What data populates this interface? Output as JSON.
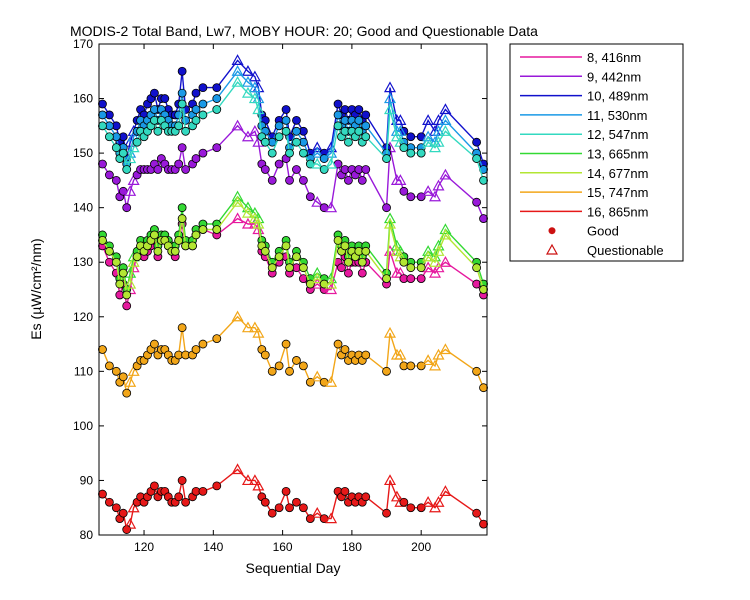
{
  "chart_data": {
    "type": "line",
    "title": "MODIS-2 Total Band,  Lw7, MOBY HOUR: 20;  Good and Questionable Data",
    "xlabel": "Sequential Day",
    "ylabel": "Es (µW/cm²/nm)",
    "xlim": [
      107,
      219
    ],
    "ylim": [
      80,
      170
    ],
    "xticks": [
      120,
      140,
      160,
      180,
      200
    ],
    "yticks": [
      80,
      90,
      100,
      110,
      120,
      130,
      140,
      150,
      160,
      170
    ],
    "legend_position": "outside-right-top",
    "markers": {
      "good_label": "Good",
      "questionable_label": "Questionable",
      "good_color": "#cc1111",
      "questionable_color": "#cc1111"
    },
    "x": [
      108,
      110,
      112,
      113,
      114,
      115,
      116,
      117,
      118,
      119,
      120,
      121,
      122,
      123,
      124,
      125,
      126,
      127,
      128,
      129,
      130,
      131,
      132,
      134,
      135,
      137,
      141,
      147,
      150,
      152,
      153,
      154,
      155,
      157,
      159,
      161,
      162,
      164,
      166,
      168,
      170,
      172,
      174,
      176,
      177,
      178,
      179,
      180,
      181,
      182,
      183,
      184,
      190,
      191,
      193,
      194,
      195,
      197,
      200,
      202,
      204,
      205,
      207,
      216,
      218
    ],
    "questionable": [
      false,
      false,
      false,
      false,
      false,
      false,
      true,
      true,
      false,
      false,
      false,
      false,
      false,
      false,
      false,
      false,
      false,
      false,
      false,
      false,
      false,
      false,
      false,
      false,
      false,
      false,
      false,
      true,
      true,
      true,
      true,
      false,
      false,
      false,
      false,
      false,
      false,
      false,
      false,
      false,
      true,
      false,
      true,
      false,
      false,
      false,
      false,
      false,
      false,
      false,
      false,
      false,
      false,
      true,
      true,
      true,
      false,
      false,
      false,
      true,
      true,
      true,
      true,
      false,
      false
    ],
    "series": [
      {
        "name": "8, 416nm",
        "color": "#e6199e",
        "values": [
          133,
          130,
          128,
          124,
          126,
          122,
          125,
          129,
          131,
          133,
          131,
          132,
          133,
          134,
          131,
          134,
          134,
          133,
          132,
          131,
          134,
          137,
          133,
          133,
          135,
          136,
          135,
          138,
          137,
          137,
          136,
          132,
          131,
          128,
          130,
          131,
          128,
          129,
          127,
          125,
          126,
          125,
          125,
          130,
          129,
          131,
          128,
          130,
          130,
          130,
          128,
          130,
          126,
          132,
          128,
          128,
          127,
          127,
          127,
          129,
          128,
          129,
          130,
          126,
          124
        ]
      },
      {
        "name": "9, 442nm",
        "color": "#9919d9",
        "values": [
          148,
          146,
          145,
          142,
          143,
          140,
          143,
          145,
          146,
          147,
          147,
          147,
          147,
          148,
          147,
          149,
          148,
          147,
          147,
          147,
          148,
          151,
          147,
          148,
          149,
          150,
          151,
          155,
          153,
          154,
          152,
          148,
          147,
          145,
          148,
          149,
          145,
          147,
          145,
          142,
          141,
          140,
          140,
          148,
          146,
          147,
          145,
          147,
          146,
          147,
          145,
          147,
          140,
          151,
          145,
          145,
          143,
          142,
          142,
          143,
          142,
          144,
          146,
          141,
          138
        ]
      },
      {
        "name": "10, 489nm",
        "color": "#1111cc",
        "values": [
          159,
          157,
          155,
          152,
          153,
          149,
          152,
          154,
          156,
          158,
          157,
          159,
          160,
          161,
          158,
          160,
          160,
          158,
          157,
          157,
          159,
          165,
          158,
          159,
          161,
          162,
          162,
          167,
          165,
          164,
          162,
          157,
          156,
          153,
          156,
          158,
          153,
          156,
          154,
          150,
          151,
          150,
          151,
          159,
          157,
          158,
          156,
          158,
          157,
          158,
          156,
          157,
          151,
          162,
          156,
          156,
          154,
          153,
          153,
          156,
          154,
          156,
          158,
          152,
          148
        ]
      },
      {
        "name": "11, 530nm",
        "color": "#1a99e6",
        "values": [
          157,
          155,
          153,
          150,
          151,
          148,
          150,
          153,
          154,
          156,
          155,
          156,
          157,
          158,
          156,
          158,
          157,
          156,
          155,
          155,
          157,
          161,
          156,
          157,
          158,
          159,
          160,
          165,
          163,
          162,
          160,
          155,
          154,
          152,
          155,
          156,
          151,
          154,
          152,
          149,
          150,
          149,
          150,
          157,
          155,
          156,
          154,
          156,
          155,
          156,
          154,
          155,
          150,
          160,
          154,
          154,
          152,
          151,
          151,
          153,
          152,
          154,
          156,
          150,
          147
        ]
      },
      {
        "name": "12, 547nm",
        "color": "#33d9c0",
        "values": [
          155,
          153,
          151,
          149,
          150,
          147,
          149,
          151,
          152,
          154,
          153,
          154,
          155,
          156,
          154,
          156,
          155,
          154,
          154,
          154,
          155,
          159,
          154,
          155,
          156,
          157,
          158,
          163,
          161,
          160,
          158,
          153,
          152,
          150,
          153,
          154,
          150,
          152,
          150,
          148,
          148,
          147,
          148,
          155,
          153,
          154,
          152,
          154,
          153,
          154,
          152,
          153,
          149,
          158,
          153,
          152,
          151,
          150,
          150,
          152,
          151,
          152,
          154,
          149,
          145
        ]
      },
      {
        "name": "13, 665nm",
        "color": "#33d933",
        "values": [
          135,
          133,
          131,
          127,
          129,
          125,
          128,
          131,
          132,
          134,
          133,
          134,
          135,
          136,
          133,
          135,
          135,
          134,
          133,
          133,
          135,
          140,
          134,
          134,
          136,
          137,
          137,
          142,
          140,
          139,
          138,
          134,
          133,
          130,
          132,
          134,
          130,
          132,
          130,
          127,
          128,
          127,
          127,
          135,
          133,
          134,
          131,
          133,
          132,
          133,
          131,
          133,
          128,
          138,
          133,
          132,
          131,
          130,
          130,
          132,
          131,
          133,
          136,
          130,
          126
        ]
      },
      {
        "name": "14, 677nm",
        "color": "#b3e633",
        "values": [
          134,
          132,
          130,
          126,
          128,
          124,
          126,
          130,
          131,
          133,
          132,
          133,
          134,
          135,
          132,
          134,
          134,
          133,
          132,
          132,
          134,
          138,
          133,
          133,
          135,
          136,
          136,
          141,
          139,
          138,
          137,
          133,
          132,
          129,
          131,
          133,
          129,
          131,
          129,
          126,
          127,
          126,
          126,
          134,
          132,
          133,
          130,
          132,
          131,
          132,
          130,
          132,
          127,
          137,
          132,
          131,
          130,
          129,
          129,
          131,
          130,
          132,
          135,
          129,
          125
        ]
      },
      {
        "name": "15, 747nm",
        "color": "#f2a619",
        "values": [
          114,
          111,
          110,
          108,
          109,
          106,
          108,
          110,
          111,
          112,
          112,
          113,
          114,
          115,
          113,
          114,
          114,
          113,
          112,
          112,
          113,
          118,
          113,
          113,
          114,
          115,
          116,
          120,
          118,
          118,
          117,
          114,
          113,
          110,
          111,
          115,
          110,
          112,
          111,
          108,
          109,
          108,
          108,
          115,
          113,
          114,
          112,
          113,
          112,
          113,
          112,
          113,
          110,
          117,
          113,
          113,
          111,
          111,
          111,
          112,
          111,
          113,
          114,
          110,
          107
        ]
      },
      {
        "name": "16, 865nm",
        "color": "#e61919",
        "values": [
          87.5,
          86,
          85,
          83,
          84,
          81,
          82,
          85,
          86,
          87,
          86,
          87,
          88,
          89,
          87,
          88,
          88,
          87,
          86,
          86,
          87,
          90,
          86,
          87,
          88,
          88,
          89,
          92,
          90,
          90,
          89,
          87,
          86,
          84,
          85,
          88,
          85,
          86,
          85,
          83,
          84,
          83,
          83,
          88,
          87,
          88,
          86,
          87,
          86,
          87,
          86,
          87,
          84,
          90,
          87,
          86,
          86,
          85,
          85,
          86,
          85,
          86,
          88,
          84,
          82
        ]
      }
    ]
  }
}
